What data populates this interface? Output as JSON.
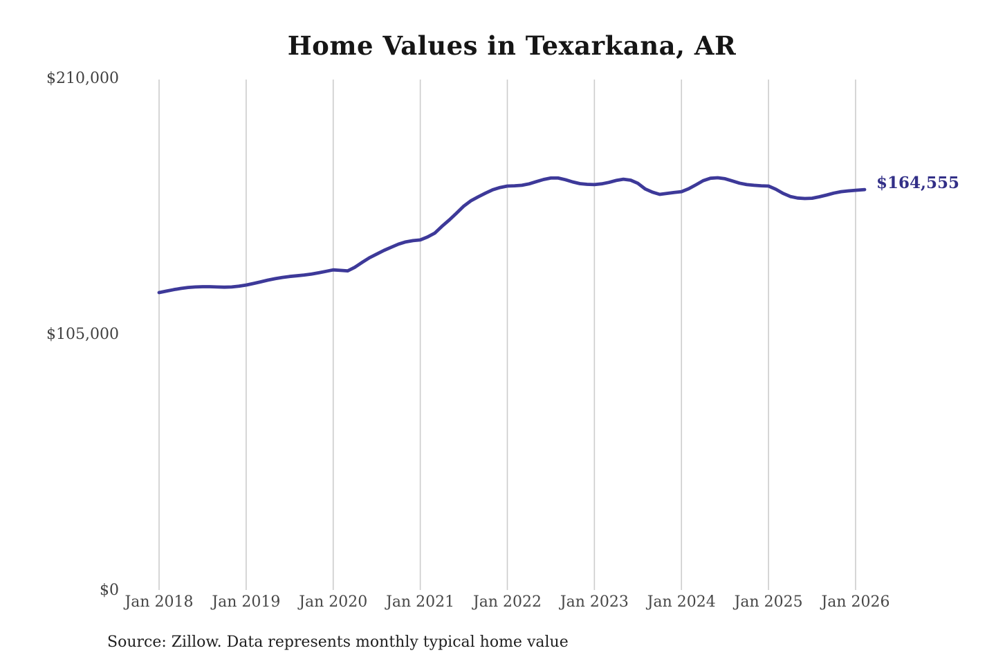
{
  "chart": {
    "title": "Home Values in Texarkana, AR",
    "source_note": "Source: Zillow. Data represents monthly typical home value",
    "latest_value_label": "$164,555",
    "colors": {
      "line": "#3d3999",
      "annotation_text": "#322f87",
      "gridline": "#cccccc",
      "axis_text": "#454545",
      "title_text": "#161616"
    }
  },
  "chart_data": {
    "type": "line",
    "title": "Home Values in Texarkana, AR",
    "xlabel": "",
    "ylabel": "",
    "ylim": [
      0,
      210000
    ],
    "grid": "vertical-only",
    "legend": "none",
    "y_ticks": [
      {
        "value": 210000,
        "label": "$210,000"
      },
      {
        "value": 105000,
        "label": "$105,000"
      },
      {
        "value": 0,
        "label": "$0"
      }
    ],
    "x_tick_labels": [
      "Jan 2018",
      "Jan 2019",
      "Jan 2020",
      "Jan 2021",
      "Jan 2022",
      "Jan 2023",
      "Jan 2024",
      "Jan 2025",
      "Jan 2026"
    ],
    "annotation": {
      "text": "$164,555",
      "x": "Jan 2026",
      "y": 164555
    },
    "series": [
      {
        "name": "Monthly typical home value",
        "x_start": "2018-01",
        "x_interval": "month",
        "values": [
          122600,
          123200,
          123800,
          124300,
          124700,
          124900,
          125000,
          125000,
          124900,
          124800,
          124900,
          125200,
          125700,
          126300,
          127000,
          127700,
          128300,
          128800,
          129200,
          129500,
          129800,
          130200,
          130700,
          131300,
          131900,
          131700,
          131500,
          133000,
          135000,
          136900,
          138400,
          139900,
          141200,
          142500,
          143400,
          143900,
          144200,
          145400,
          147000,
          149800,
          152400,
          155200,
          158100,
          160300,
          161900,
          163400,
          164800,
          165700,
          166300,
          166400,
          166600,
          167200,
          168100,
          169000,
          169600,
          169600,
          168900,
          168000,
          167300,
          167000,
          166900,
          167200,
          167800,
          168600,
          169100,
          168700,
          167400,
          165100,
          163800,
          162900,
          163300,
          163700,
          164000,
          165200,
          166800,
          168500,
          169500,
          169700,
          169300,
          168400,
          167500,
          166900,
          166600,
          166400,
          166300,
          165000,
          163300,
          162000,
          161400,
          161200,
          161300,
          161900,
          162600,
          163400,
          164000,
          164300,
          164555
        ]
      }
    ]
  }
}
